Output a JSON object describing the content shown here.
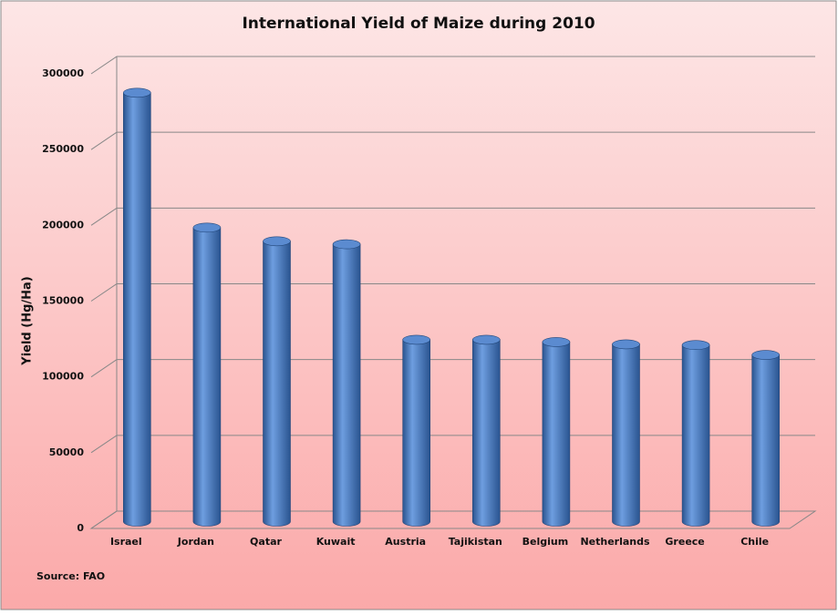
{
  "chart_data": {
    "type": "bar",
    "title": "International Yield of Maize during 2010",
    "y_label": "Yield (Hg/Ha)",
    "source": "Source: FAO",
    "categories": [
      "Israel",
      "Jordan",
      "Qatar",
      "Kuwait",
      "Austria",
      "Tajikistan",
      "Belgium",
      "Netherlands",
      "Greece",
      "Chile"
    ],
    "values": [
      283000,
      194000,
      185000,
      183000,
      120000,
      120000,
      118500,
      117000,
      116500,
      110000
    ],
    "color": "#4a7cc0",
    "ylim": [
      0,
      300000
    ],
    "yticks": [
      0,
      50000,
      100000,
      150000,
      200000,
      250000,
      300000
    ],
    "grid": true
  }
}
